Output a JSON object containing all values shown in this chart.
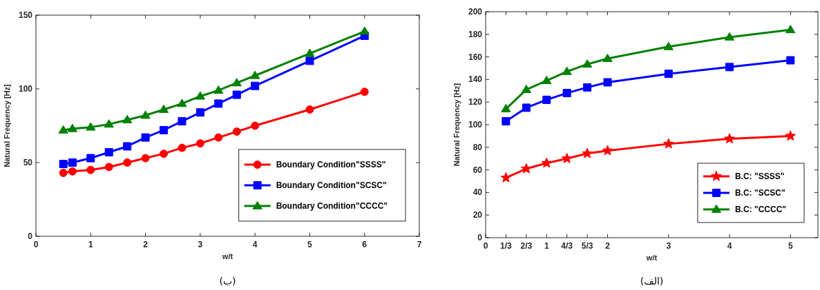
{
  "chart_data": [
    {
      "type": "line",
      "xlabel": "w/t",
      "ylabel": "Natural Frequency [Hz]",
      "annotations": [
        "(ب)"
      ],
      "x": [
        0.5,
        0.667,
        1,
        1.333,
        1.667,
        2,
        2.333,
        2.667,
        3,
        3.333,
        3.667,
        4,
        5,
        6
      ],
      "xlim": [
        0,
        7
      ],
      "xticks": [
        0,
        1,
        2,
        3,
        4,
        5,
        6,
        7
      ],
      "ylim": [
        0,
        150
      ],
      "yticks": [
        0,
        50,
        100,
        150
      ],
      "legend": "bottom right",
      "series": [
        {
          "name": "Boundary Condition\"SSSS\"",
          "color": "#ff0000",
          "marker": "circle",
          "values": [
            43,
            44,
            45,
            47,
            50,
            53,
            56,
            60,
            63,
            67,
            71,
            75,
            86,
            98
          ]
        },
        {
          "name": "Boundary Condition\"SCSC\"",
          "color": "#0000ff",
          "marker": "square",
          "values": [
            49,
            50,
            53,
            57,
            61,
            67,
            72,
            78,
            84,
            90,
            96,
            102,
            119,
            136
          ]
        },
        {
          "name": "Boundary Condition\"CCCC\"",
          "color": "#008000",
          "marker": "triangle",
          "values": [
            72,
            73,
            74,
            76,
            79,
            82,
            86,
            90,
            95,
            99,
            104,
            109,
            124,
            139
          ]
        }
      ]
    },
    {
      "type": "line",
      "xlabel": "w/t",
      "ylabel": "Natural Frequency [Hz]",
      "annotations": [
        "(الف)"
      ],
      "x": [
        0.333,
        0.667,
        1,
        1.333,
        1.667,
        2,
        3,
        4,
        5
      ],
      "xlim": [
        0,
        5.45
      ],
      "xticks": [
        0,
        {
          "value": 0.333,
          "label": "1/3"
        },
        {
          "value": 0.667,
          "label": "2/3"
        },
        1,
        {
          "value": 1.333,
          "label": "4/3"
        },
        {
          "value": 1.667,
          "label": "5/3"
        },
        2,
        3,
        4,
        5
      ],
      "ylim": [
        0,
        200
      ],
      "yticks": [
        0,
        20,
        40,
        60,
        80,
        100,
        120,
        140,
        160,
        180,
        200
      ],
      "legend": "bottom right",
      "series": [
        {
          "name": "B.C: \"SSSS\"",
          "color": "#ff0000",
          "marker": "star",
          "values": [
            53,
            61,
            66,
            70,
            74.5,
            77,
            83,
            87.5,
            90
          ]
        },
        {
          "name": "B.C: \"SCSC\"",
          "color": "#0000ff",
          "marker": "square",
          "values": [
            103,
            115,
            122,
            128,
            133,
            137.5,
            145,
            151,
            157
          ]
        },
        {
          "name": "B.C: \"CCCC\"",
          "color": "#008000",
          "marker": "triangle",
          "values": [
            114,
            131,
            139,
            147,
            153.5,
            158.5,
            169,
            177.5,
            184
          ]
        }
      ]
    }
  ]
}
